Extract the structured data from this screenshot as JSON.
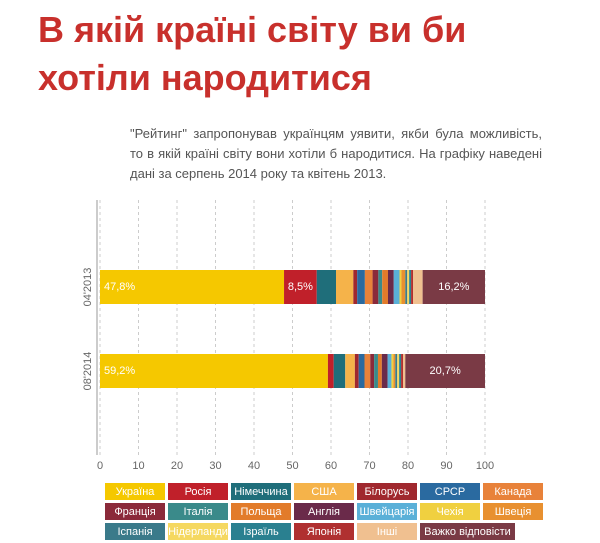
{
  "title": "В якій країні світу ви би хотіли народитися",
  "subtitle": "\"Рейтинг\" запропонував українцям уявити, якби була можливість, то в якій країні світу вони хотіли б народитися. На графіку наведені дані за серпень 2014 року та квітень 2013.",
  "chart_data": {
    "type": "stacked-bar-horizontal",
    "categories": [
      "04'2013",
      "08'2014"
    ],
    "xlim": [
      0,
      100
    ],
    "xticks": [
      0,
      10,
      20,
      30,
      40,
      50,
      60,
      70,
      80,
      90,
      100
    ],
    "grid": true,
    "series": [
      {
        "name": "Україна",
        "color": "#f5c800",
        "values": [
          47.8,
          59.2
        ],
        "value_labels": [
          "47,8%",
          "59,2%"
        ]
      },
      {
        "name": "Росія",
        "color": "#c0202a",
        "values": [
          8.5,
          1.5
        ],
        "value_labels": [
          "8,5%",
          null
        ]
      },
      {
        "name": "Німеччина",
        "color": "#1f6e7a",
        "values": [
          5,
          3
        ]
      },
      {
        "name": "США",
        "color": "#f5b34a",
        "values": [
          4.5,
          2.5
        ]
      },
      {
        "name": "Білорусь",
        "color": "#a0282e",
        "values": [
          1,
          1
        ]
      },
      {
        "name": "СРСР",
        "color": "#2a6aa0",
        "values": [
          2,
          1.5
        ]
      },
      {
        "name": "Канада",
        "color": "#e8823a",
        "values": [
          2,
          1.5
        ]
      },
      {
        "name": "Франція",
        "color": "#8b2a3a",
        "values": [
          1.5,
          1
        ]
      },
      {
        "name": "Італія",
        "color": "#3a8a8a",
        "values": [
          1,
          1
        ]
      },
      {
        "name": "Польща",
        "color": "#e27b2a",
        "values": [
          1.5,
          1
        ]
      },
      {
        "name": "Англія",
        "color": "#6a2a4a",
        "values": [
          1.5,
          1.5
        ]
      },
      {
        "name": "Швейцарія",
        "color": "#5ab0d8",
        "values": [
          1.5,
          1
        ]
      },
      {
        "name": "Чехія",
        "color": "#f0d040",
        "values": [
          0.5,
          0.5
        ]
      },
      {
        "name": "Швеція",
        "color": "#e89030",
        "values": [
          1,
          0.5
        ]
      },
      {
        "name": "Іспанія",
        "color": "#3a7a8a",
        "values": [
          0.5,
          0.5
        ]
      },
      {
        "name": "Нідерланди",
        "color": "#f5d860",
        "values": [
          0.5,
          0.5
        ]
      },
      {
        "name": "Ізраїль",
        "color": "#2a8090",
        "values": [
          0.5,
          0.5
        ]
      },
      {
        "name": "Японія",
        "color": "#b03030",
        "values": [
          0.5,
          0.5
        ]
      },
      {
        "name": "Інші",
        "color": "#f0c090",
        "values": [
          2.5,
          0.6
        ]
      },
      {
        "name": "Важко відповісти",
        "color": "#7a3a45",
        "values": [
          16.2,
          20.7
        ],
        "value_labels": [
          "16,2%",
          "20,7%"
        ]
      }
    ]
  }
}
